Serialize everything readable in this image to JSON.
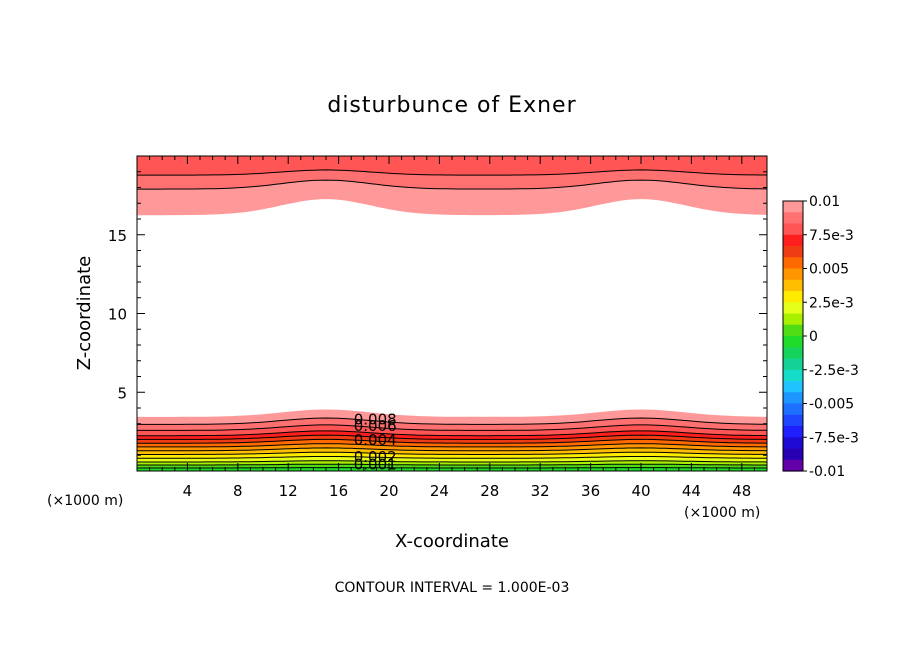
{
  "chart_data": {
    "type": "heatmap",
    "title": "disturbunce of Exner",
    "xlabel": "X-coordinate",
    "ylabel": "Z-coordinate",
    "x_unit_left": "(×1000 m)",
    "x_unit_right": "(×1000 m)",
    "xlim": [
      0,
      50
    ],
    "ylim": [
      0,
      20
    ],
    "x_ticks": [
      4,
      8,
      12,
      16,
      20,
      24,
      28,
      32,
      36,
      40,
      44,
      48
    ],
    "x_tick_labels": [
      "4",
      "8",
      "12",
      "16",
      "20",
      "24",
      "28",
      "32",
      "36",
      "40",
      "44",
      "48"
    ],
    "y_ticks": [
      5,
      10,
      15
    ],
    "y_tick_labels": [
      "5",
      "10",
      "15"
    ],
    "contour_interval_text": "CONTOUR INTERVAL = 1.000E-03",
    "contour_labels": [
      "0.008",
      "0.006",
      "0.004",
      "0.002",
      "0.001"
    ],
    "contour_label_values": [
      0.008,
      0.006,
      0.004,
      0.002,
      0.001
    ],
    "colorbar": {
      "range": [
        -0.01,
        0.01
      ],
      "tick_labels": [
        "0.01",
        "7.5e-3",
        "0.005",
        "2.5e-3",
        "0",
        "-2.5e-3",
        "-0.005",
        "-7.5e-3",
        "-0.01"
      ],
      "tick_values": [
        0.01,
        0.0075,
        0.005,
        0.0025,
        0,
        -0.0025,
        -0.005,
        -0.0075,
        -0.01
      ],
      "colors_top_to_bottom": [
        "#ff9999",
        "#ff7070",
        "#ff5555",
        "#ff1e1e",
        "#f03c14",
        "#ff6a00",
        "#ff9600",
        "#ffbe00",
        "#ffeb00",
        "#e6ff1a",
        "#a8f000",
        "#4fdc14",
        "#1edc28",
        "#14d25a",
        "#14d296",
        "#14dcc8",
        "#1ec3ff",
        "#1e96ff",
        "#1e6eff",
        "#1e46ff",
        "#1e1eff",
        "#1e0ad2",
        "#2800b4",
        "#6400aa"
      ]
    },
    "bottom_levels": [
      {
        "level": 0.0005,
        "mean_height": 0.2,
        "color": "#1edc28"
      },
      {
        "level": 0.001,
        "mean_height": 0.4,
        "color": "#4fdc14"
      },
      {
        "level": 0.0015,
        "mean_height": 0.6,
        "color": "#a8f000"
      },
      {
        "level": 0.002,
        "mean_height": 0.85,
        "color": "#e6ff1a"
      },
      {
        "level": 0.0025,
        "mean_height": 1.1,
        "color": "#ffeb00"
      },
      {
        "level": 0.003,
        "mean_height": 1.35,
        "color": "#ffbe00"
      },
      {
        "level": 0.0035,
        "mean_height": 1.6,
        "color": "#ff9600"
      },
      {
        "level": 0.004,
        "mean_height": 1.85,
        "color": "#ff6a00"
      },
      {
        "level": 0.0045,
        "mean_height": 2.1,
        "color": "#f03c14"
      },
      {
        "level": 0.005,
        "mean_height": 2.35,
        "color": "#ff1e1e"
      },
      {
        "level": 0.006,
        "mean_height": 2.7,
        "color": "#ff5555"
      },
      {
        "level": 0.008,
        "mean_height": 3.1,
        "color": "#ff7070"
      },
      {
        "level": 0.009,
        "mean_height": 3.6,
        "color": "#ff9999"
      }
    ],
    "top_levels": [
      {
        "level": 0.009,
        "mean_height": 16.6,
        "color": "#ff9999"
      },
      {
        "level": 0.0095,
        "mean_height": 18.1,
        "color": "#ff7070"
      },
      {
        "level": 0.01,
        "mean_height": 18.9,
        "color": "#ff5555"
      }
    ],
    "bump_centers": [
      15,
      40
    ],
    "bump_width": 5,
    "grid": false
  }
}
